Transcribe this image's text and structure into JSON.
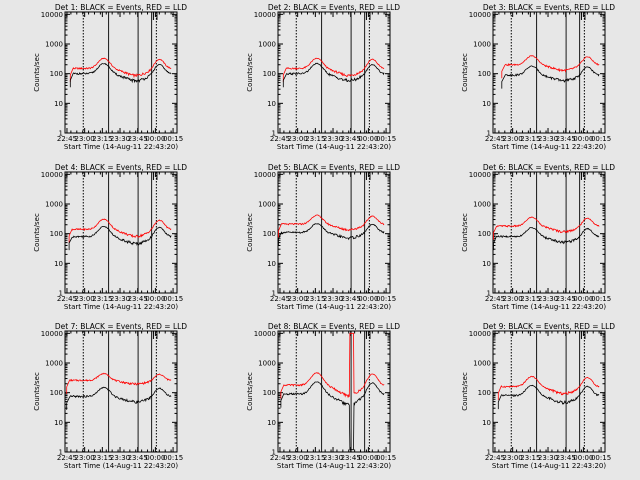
{
  "background": "#e7e7e7",
  "colors": {
    "events": "#000000",
    "lld": "#ff0000",
    "axis": "#000000"
  },
  "chart_data": [
    {
      "type": "line",
      "title": "Det 1: BLACK = Events, RED = LLD",
      "xlabel": "Start Time (14-Aug-11 22:43:20)",
      "ylabel": "Counts/sec",
      "red": {
        "base": 150,
        "amp": 2.2
      },
      "black": {
        "base": 100,
        "amp": 2.2
      },
      "start_minutes": 7,
      "lines": [
        15.5,
        37,
        62,
        73.5,
        77.5
      ],
      "spike": null,
      "minor_ticks": [
        75,
        78
      ]
    },
    {
      "type": "line",
      "title": "Det 2: BLACK = Events, RED = LLD",
      "xlabel": "Start Time (14-Aug-11 22:43:20)",
      "ylabel": "Counts/sec",
      "red": {
        "base": 150,
        "amp": 2.2
      },
      "black": {
        "base": 100,
        "amp": 2.2
      },
      "start_minutes": 7,
      "lines": [
        15.5,
        37,
        62,
        73.5,
        77.5
      ],
      "spike": null,
      "minor_ticks": [
        75,
        78
      ]
    },
    {
      "type": "line",
      "title": "Det 3: BLACK = Events, RED = LLD",
      "xlabel": "Start Time (14-Aug-11 22:43:20)",
      "ylabel": "Counts/sec",
      "red": {
        "base": 200,
        "amp": 2.0
      },
      "black": {
        "base": 90,
        "amp": 2.0
      },
      "start_minutes": 10,
      "lines": [
        15.5,
        37,
        62,
        73.5,
        77.5
      ],
      "spike": null,
      "minor_ticks": [
        75,
        78
      ]
    },
    {
      "type": "line",
      "title": "Det 4: BLACK = Events, RED = LLD",
      "xlabel": "Start Time (14-Aug-11 22:43:20)",
      "ylabel": "Counts/sec",
      "red": {
        "base": 140,
        "amp": 2.2
      },
      "black": {
        "base": 80,
        "amp": 2.2
      },
      "start_minutes": 6,
      "lines": [
        15.5,
        37,
        62,
        73.5,
        77.5
      ],
      "spike": null,
      "minor_ticks": [
        75,
        78
      ]
    },
    {
      "type": "line",
      "title": "Det 5: BLACK = Events, RED = LLD",
      "xlabel": "Start Time (14-Aug-11 22:43:20)",
      "ylabel": "Counts/sec",
      "red": {
        "base": 210,
        "amp": 2.0
      },
      "black": {
        "base": 110,
        "amp": 2.0
      },
      "start_minutes": 3,
      "lines": [
        15.5,
        37,
        62,
        73.5,
        77.5
      ],
      "spike": null,
      "minor_ticks": [
        75,
        78
      ]
    },
    {
      "type": "line",
      "title": "Det 6: BLACK = Events, RED = LLD",
      "xlabel": "Start Time (14-Aug-11 22:43:20)",
      "ylabel": "Counts/sec",
      "red": {
        "base": 180,
        "amp": 2.0
      },
      "black": {
        "base": 80,
        "amp": 2.0
      },
      "start_minutes": 3,
      "lines": [
        15.5,
        37,
        62,
        73.5,
        77.5
      ],
      "spike": null,
      "minor_ticks": [
        75,
        78
      ]
    },
    {
      "type": "line",
      "title": "Det 7: BLACK = Events, RED = LLD",
      "xlabel": "Start Time (14-Aug-11 22:43:20)",
      "ylabel": "Counts/sec",
      "red": {
        "base": 260,
        "amp": 1.7
      },
      "black": {
        "base": 75,
        "amp": 2.0
      },
      "start_minutes": 4,
      "lines": [
        15.5,
        37,
        62,
        73.5,
        77.5
      ],
      "spike": null,
      "minor_ticks": [
        75,
        78
      ]
    },
    {
      "type": "line",
      "title": "Det 8: BLACK = Events, RED = LLD",
      "xlabel": "Start Time (14-Aug-11 22:43:20)",
      "ylabel": "Counts/sec",
      "red": {
        "base": 180,
        "amp": 2.6
      },
      "black": {
        "base": 90,
        "amp": 2.6
      },
      "start_minutes": 5,
      "lines": [
        15.5,
        37,
        62,
        73.5,
        77.5
      ],
      "spike": {
        "minute": 62.5,
        "peak": 10000
      },
      "minor_ticks": [
        75,
        78
      ]
    },
    {
      "type": "line",
      "title": "Det 9: BLACK = Events, RED = LLD",
      "xlabel": "Start Time (14-Aug-11 22:43:20)",
      "ylabel": "Counts/sec",
      "red": {
        "base": 160,
        "amp": 2.2
      },
      "black": {
        "base": 80,
        "amp": 2.2
      },
      "start_minutes": 7,
      "lines": [
        15.5,
        37,
        62,
        73.5,
        77.5
      ],
      "spike": null,
      "minor_ticks": [
        75,
        78
      ]
    }
  ],
  "axes": {
    "x_tick_labels": [
      "22:45",
      "23:00",
      "23:15",
      "23:30",
      "23:45",
      "00:00",
      "00:15"
    ],
    "x_tick_minutes": [
      1.667,
      16.667,
      31.667,
      46.667,
      61.667,
      76.667,
      91.667
    ],
    "xlim_minutes": [
      0,
      95
    ],
    "y_tick_labels": [
      "1",
      "10",
      "100",
      "1000",
      "10000"
    ],
    "y_scale": "log",
    "ylim": [
      1,
      12000
    ]
  }
}
